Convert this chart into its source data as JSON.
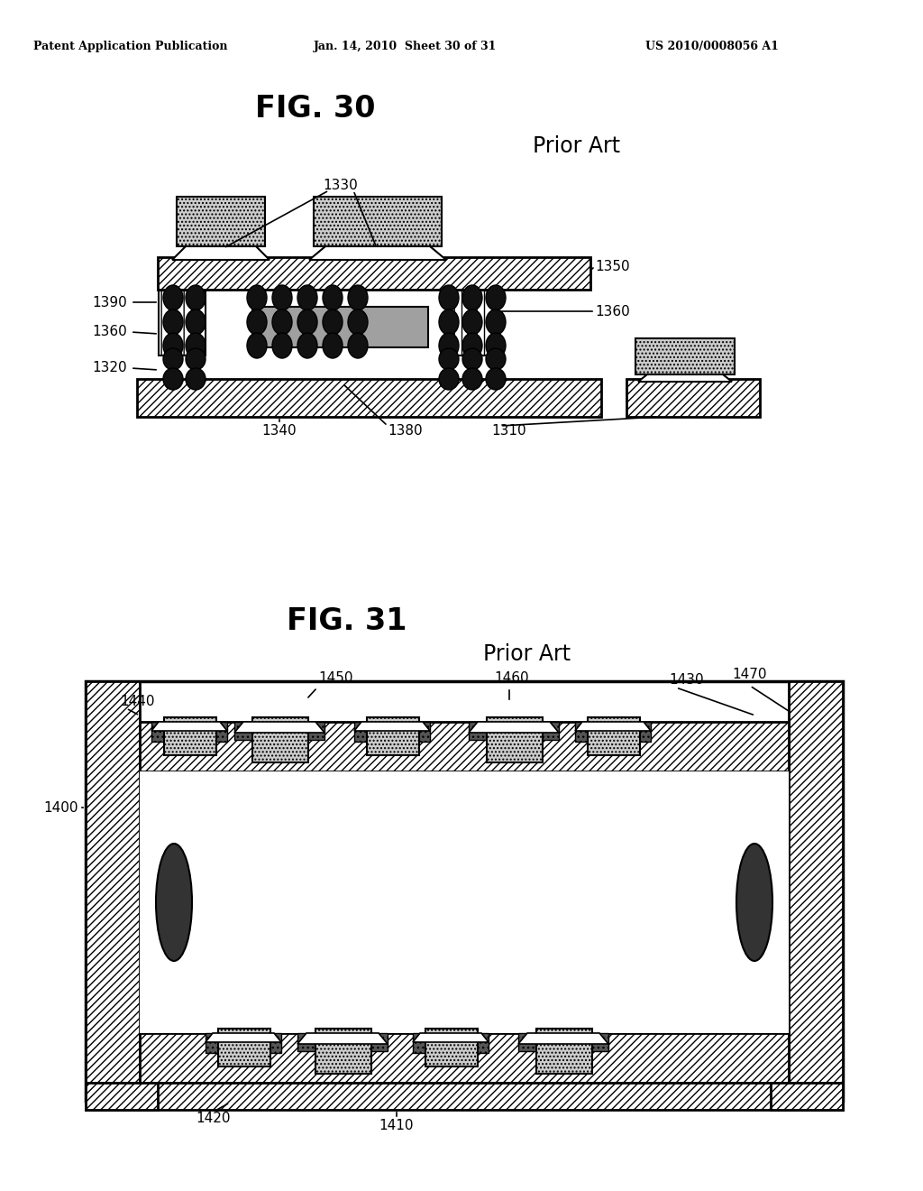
{
  "background_color": "#ffffff",
  "header_text": "Patent Application Publication",
  "header_date": "Jan. 14, 2010  Sheet 30 of 31",
  "header_patent": "US 2010/0008056 A1",
  "fig30_title": "FIG. 30",
  "fig30_prior_art": "Prior Art",
  "fig31_title": "FIG. 31",
  "fig31_prior_art": "Prior Art"
}
